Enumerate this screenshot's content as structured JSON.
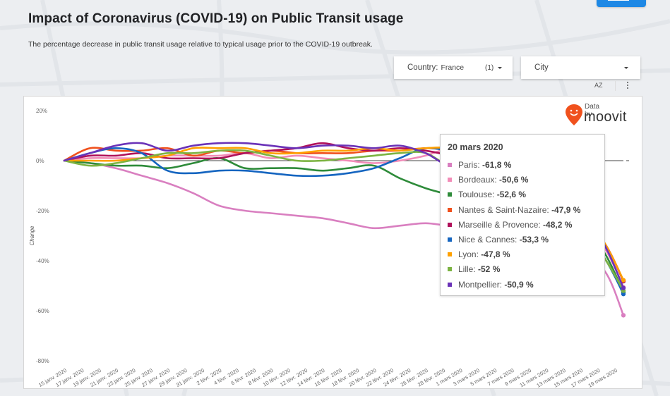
{
  "header": {
    "title": "Impact of Coronavirus (COVID-19) on Public Transit usage",
    "subtitle": "The percentage decrease in public transit usage relative to typical usage prior to the COVID-19 outbreak."
  },
  "filters": {
    "country_label": "Country:",
    "country_value": "France",
    "country_count": "(1)",
    "city_label": "City"
  },
  "toolbar": {
    "sort_icon": "AZ",
    "more_icon": "more-vertical"
  },
  "branding": {
    "data_by": "Data by",
    "brand": "moovit"
  },
  "tooltip": {
    "title": "20 mars 2020",
    "rows": [
      {
        "label": "Paris:",
        "value": "-61,8 %",
        "color": "#d97fc0"
      },
      {
        "label": "Bordeaux:",
        "value": "-50,6 %",
        "color": "#f28cb8"
      },
      {
        "label": "Toulouse:",
        "value": "-52,6 %",
        "color": "#2e8b3a"
      },
      {
        "label": "Nantes & Saint-Nazaire:",
        "value": "-47,9 %",
        "color": "#f0511d"
      },
      {
        "label": "Marseille & Provence:",
        "value": "-48,2 %",
        "color": "#b0115a"
      },
      {
        "label": "Nice & Cannes:",
        "value": "-53,3 %",
        "color": "#1565c0"
      },
      {
        "label": "Lyon:",
        "value": "-47,8 %",
        "color": "#ffa000"
      },
      {
        "label": "Lille:",
        "value": "-52 %",
        "color": "#7cb342"
      },
      {
        "label": "Montpellier:",
        "value": "-50,9 %",
        "color": "#6a32b8"
      }
    ]
  },
  "chart_data": {
    "type": "line",
    "title": "",
    "xlabel": "",
    "ylabel": "Change",
    "ylim": [
      -80,
      20
    ],
    "yticks": [
      "20%",
      "0%",
      "-20%",
      "-40%",
      "-60%",
      "-80%"
    ],
    "ytick_values": [
      20,
      0,
      -20,
      -40,
      -60,
      -80
    ],
    "xticks": [
      "15 janv. 2020",
      "17 janv. 2020",
      "19 janv. 2020",
      "21 janv. 2020",
      "23 janv. 2020",
      "25 janv. 2020",
      "27 janv. 2020",
      "29 janv. 2020",
      "31 janv. 2020",
      "2 févr. 2020",
      "4 févr. 2020",
      "6 févr. 2020",
      "8 févr. 2020",
      "10 févr. 2020",
      "12 févr. 2020",
      "14 févr. 2020",
      "16 févr. 2020",
      "18 févr. 2020",
      "20 févr. 2020",
      "22 févr. 2020",
      "24 févr. 2020",
      "26 févr. 2020",
      "28 févr. 2020",
      "1 mars 2020",
      "3 mars 2020",
      "5 mars 2020",
      "7 mars 2020",
      "9 mars 2020",
      "11 mars 2020",
      "13 mars 2020",
      "15 mars 2020",
      "17 mars 2020",
      "19 mars 2020"
    ],
    "x_day_offsets": [
      0,
      3,
      6,
      9,
      12,
      15,
      18,
      21,
      24,
      27,
      30,
      33,
      36,
      39,
      42,
      45,
      48,
      51,
      54,
      57,
      60,
      63,
      65
    ],
    "x_day_count": 65,
    "grid": false,
    "legend": "tooltip",
    "series": [
      {
        "name": "Paris",
        "color": "#d97fc0",
        "values": [
          0,
          -1,
          -3,
          -6,
          -9,
          -13,
          -18,
          -20,
          -21,
          -22,
          -23,
          -25,
          -27,
          -26,
          -25,
          -26,
          -25,
          -24,
          -25,
          -27,
          -35,
          -45,
          -61.8
        ]
      },
      {
        "name": "Bordeaux",
        "color": "#f28cb8",
        "values": [
          0,
          1,
          1,
          1,
          2,
          2,
          2,
          3,
          1,
          2,
          1,
          0,
          -1,
          0,
          2,
          5,
          3,
          1,
          -2,
          -8,
          -22,
          -36,
          -50.6
        ]
      },
      {
        "name": "Toulouse",
        "color": "#2e8b3a",
        "values": [
          0,
          -1,
          -2,
          -2,
          -3,
          -1,
          1,
          -3,
          -3,
          -3,
          -4,
          -3,
          -2,
          -7,
          -11,
          -14,
          -18,
          -12,
          -9,
          -10,
          -22,
          -38,
          -52.6
        ]
      },
      {
        "name": "Nantes & Saint-Nazaire",
        "color": "#f0511d",
        "values": [
          0,
          5,
          4,
          4,
          5,
          2,
          4,
          3,
          4,
          3,
          3,
          3,
          4,
          4,
          5,
          4,
          1,
          -5,
          -5,
          -8,
          -20,
          -34,
          -47.9
        ]
      },
      {
        "name": "Marseille & Provence",
        "color": "#b0115a",
        "values": [
          0,
          2,
          2,
          3,
          1,
          1,
          1,
          3,
          4,
          5,
          7,
          5,
          4,
          5,
          4,
          2,
          0,
          -2,
          -4,
          -8,
          -20,
          -34,
          -48.2
        ]
      },
      {
        "name": "Nice & Cannes",
        "color": "#1565c0",
        "values": [
          0,
          3,
          5,
          3,
          -4,
          -5,
          -4,
          -4,
          -5,
          -6,
          -6,
          -5,
          -3,
          1,
          5,
          3,
          -4,
          -5,
          -7,
          -12,
          -25,
          -40,
          -53.3
        ]
      },
      {
        "name": "Lyon",
        "color": "#ffa000",
        "values": [
          0,
          0,
          0,
          1,
          2,
          5,
          5,
          5,
          3,
          3,
          4,
          4,
          5,
          4,
          5,
          5,
          2,
          0,
          -2,
          -5,
          -18,
          -34,
          -47.8
        ]
      },
      {
        "name": "Lille",
        "color": "#7cb342",
        "values": [
          0,
          -2,
          -1,
          1,
          3,
          3,
          4,
          4,
          2,
          0,
          0,
          1,
          2,
          3,
          3,
          -3,
          -7,
          -10,
          -12,
          -14,
          -25,
          -40,
          -52
        ]
      },
      {
        "name": "Montpellier",
        "color": "#6a32b8",
        "values": [
          0,
          3,
          6,
          7,
          4,
          6,
          7,
          7,
          6,
          5,
          6,
          6,
          5,
          6,
          3,
          -2,
          3,
          8,
          10,
          5,
          -18,
          -35,
          -50.9
        ]
      }
    ]
  }
}
